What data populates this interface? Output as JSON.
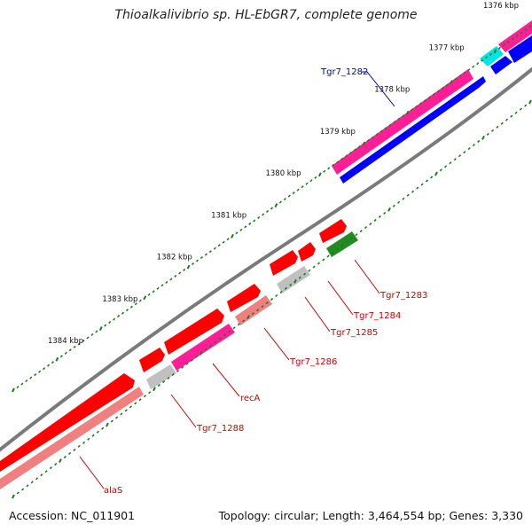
{
  "title": "Thioalkalivibrio sp. HL-EbGR7, complete genome",
  "accession": "Accession: NC_011901",
  "summary": "Topology: circular; Length: 3,464,554 bp; Genes: 3,330",
  "ruler": [
    {
      "label": "1376 kbp",
      "bp": 1376000
    },
    {
      "label": "1377 kbp",
      "bp": 1377000
    },
    {
      "label": "1378 kbp",
      "bp": 1378000
    },
    {
      "label": "1379 kbp",
      "bp": 1379000
    },
    {
      "label": "1380 kbp",
      "bp": 1380000
    },
    {
      "label": "1381 kbp",
      "bp": 1381000
    },
    {
      "label": "1382 kbp",
      "bp": 1382000
    },
    {
      "label": "1383 kbp",
      "bp": 1383000
    },
    {
      "label": "1384 kbp",
      "bp": 1384000
    }
  ],
  "colors": {
    "cds_forward": "#0000ff",
    "gene_forward": "#ff1e96",
    "cds_reverse": "#ff0000",
    "gene_reverse": "#f08080",
    "trna": "#228b22",
    "other": "#c0c0c0",
    "cyan_feature": "#00e5e5",
    "backbone": "#7a7a7a",
    "label_forward": "#0000aa",
    "label_reverse": "#cc0000",
    "tick": "#1f7a1f"
  },
  "labels": [
    {
      "id": "tgr7-1282",
      "text": "Tgr7_1282"
    },
    {
      "id": "tgr7-1283",
      "text": "Tgr7_1283"
    },
    {
      "id": "tgr7-1284",
      "text": "Tgr7_1284"
    },
    {
      "id": "tgr7-1285",
      "text": "Tgr7_1285"
    },
    {
      "id": "tgr7-1286",
      "text": "Tgr7_1286"
    },
    {
      "id": "reca",
      "text": "recA"
    },
    {
      "id": "tgr7-1288",
      "text": "Tgr7_1288"
    },
    {
      "id": "alas",
      "text": "alaS"
    }
  ]
}
